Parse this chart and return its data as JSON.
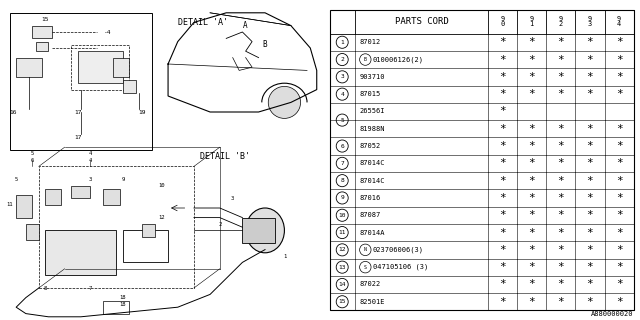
{
  "bg_color": "#ffffff",
  "line_color": "#000000",
  "catalog_num": "A880000020",
  "row_nums_display": [
    "1",
    "2",
    "3",
    "4",
    "5",
    "5",
    "6",
    "7",
    "8",
    "9",
    "10",
    "11",
    "12",
    "13",
    "14",
    "15"
  ],
  "part_codes": [
    "87012",
    "(B)010006126(2)",
    "903710",
    "87015",
    "26556I",
    "81988N",
    "87052",
    "87014C",
    "87014C",
    "87016",
    "87087",
    "87014A",
    "(N)023706006(3)",
    "(S)047105106 (3)",
    "87022",
    "82501E"
  ],
  "marks_data": [
    [
      1,
      1,
      1,
      1,
      1
    ],
    [
      1,
      1,
      1,
      1,
      1
    ],
    [
      1,
      1,
      1,
      1,
      1
    ],
    [
      1,
      1,
      1,
      1,
      1
    ],
    [
      1,
      0,
      0,
      0,
      0
    ],
    [
      1,
      1,
      1,
      1,
      1
    ],
    [
      1,
      1,
      1,
      1,
      1
    ],
    [
      1,
      1,
      1,
      1,
      1
    ],
    [
      1,
      1,
      1,
      1,
      1
    ],
    [
      1,
      1,
      1,
      1,
      1
    ],
    [
      1,
      1,
      1,
      1,
      1
    ],
    [
      1,
      1,
      1,
      1,
      1
    ],
    [
      1,
      1,
      1,
      1,
      1
    ],
    [
      1,
      1,
      1,
      1,
      1
    ],
    [
      1,
      1,
      1,
      1,
      1
    ],
    [
      1,
      1,
      1,
      1,
      1
    ]
  ],
  "detail_a_label": "DETAIL 'A'",
  "detail_b_label": "DETAIL 'B'",
  "font_size_table": 6.0,
  "font_size_num": 5.5,
  "font_size_diagram": 5.5
}
